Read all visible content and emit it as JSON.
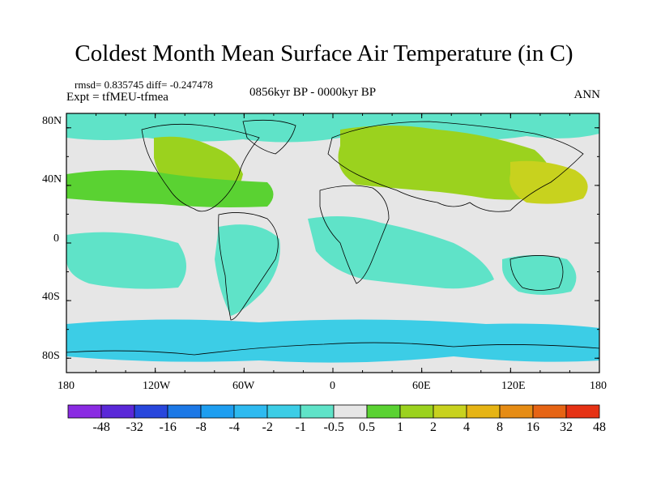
{
  "title": "Coldest Month Mean Surface Air Temperature (in C)",
  "stats": "rmsd= 0.835745  diff= -0.247478",
  "experiment": "Expt = tfMEU-tfmea",
  "period": "0856kyr BP - 0000kyr BP",
  "season": "ANN",
  "axes": {
    "lat_labels": [
      "80N",
      "40N",
      "0",
      "40S",
      "80S"
    ],
    "lon_labels": [
      "180",
      "120W",
      "60W",
      "0",
      "60E",
      "120E",
      "180"
    ]
  },
  "colorbar": {
    "labels": [
      "-48",
      "-32",
      "-16",
      "-8",
      "-4",
      "-2",
      "-1",
      "-0.5",
      "0.5",
      "1",
      "2",
      "4",
      "8",
      "16",
      "32",
      "48"
    ],
    "colors": [
      "#8a2be2",
      "#5a28d8",
      "#2846dc",
      "#1c78e6",
      "#1e9ef0",
      "#2ebaf0",
      "#3ccde6",
      "#5fe3c8",
      "#e6e6e6",
      "#5ad232",
      "#9bd21e",
      "#c8d21e",
      "#e6b414",
      "#e68c14",
      "#e66414",
      "#e63214"
    ]
  }
}
